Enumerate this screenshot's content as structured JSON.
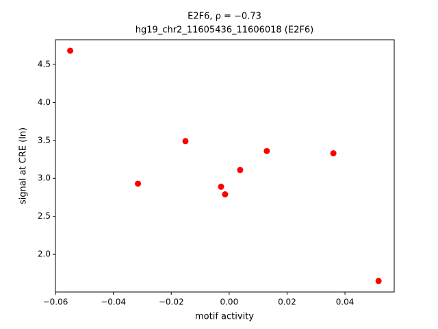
{
  "chart_data": {
    "type": "scatter",
    "title": "E2F6, ρ = −0.73",
    "subtitle": "hg19_chr2_11605436_11606018 (E2F6)",
    "x_label": "motif activity",
    "y_label": "signal at CRE (ln)",
    "color": "#ff0000",
    "x": [
      -0.0549,
      -0.0315,
      -0.0151,
      -0.0028,
      -0.0014,
      0.0038,
      0.013,
      0.036,
      0.0516
    ],
    "values": [
      4.68,
      2.93,
      3.49,
      2.89,
      2.79,
      3.11,
      3.36,
      3.33,
      1.65
    ],
    "xlim": [
      -0.06,
      0.057
    ],
    "ylim": [
      1.505,
      4.824
    ],
    "xticks": [
      {
        "value": -0.06,
        "label": "−0.06"
      },
      {
        "value": -0.04,
        "label": "−0.04"
      },
      {
        "value": -0.02,
        "label": "−0.02"
      },
      {
        "value": 0,
        "label": "0.00"
      },
      {
        "value": 0.02,
        "label": "0.02"
      },
      {
        "value": 0.04,
        "label": "0.04"
      }
    ],
    "yticks": [
      {
        "value": 2,
        "label": "2.0"
      },
      2.5,
      {
        "value": 3,
        "label": "3.0"
      },
      3.5,
      {
        "value": 4,
        "label": "4.0"
      },
      4.5
    ],
    "grid": false
  }
}
